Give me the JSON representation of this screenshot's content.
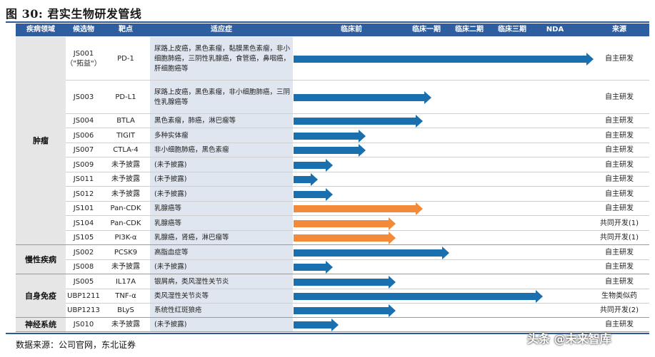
{
  "title": "图 30: 君实生物研发管线",
  "headers": [
    "疾病领域",
    "候选物",
    "靶点",
    "适应症",
    "临床前",
    "临床一期",
    "临床二期",
    "临床三期",
    "NDA",
    "来源"
  ],
  "footnote": "数据来源：公司官网，东北证券",
  "watermark": "头条 @未来智库",
  "colors": {
    "blue_bar": "#1a6faf",
    "orange_bar": "#f28a3a",
    "header": "#2e5ea0"
  },
  "groups": [
    {
      "name": "肿瘤",
      "rows": [
        0,
        10
      ]
    },
    {
      "name": "慢性疾病",
      "rows": [
        11,
        12
      ]
    },
    {
      "name": "自身免疫",
      "rows": [
        13,
        15
      ]
    },
    {
      "name": "神经系统",
      "rows": [
        16,
        16
      ]
    }
  ],
  "rows": [
    {
      "candidate": "JS001\n（\"拓益\"）",
      "target": "PD-1",
      "indication": "尿路上皮癌，黑色素瘤，黏膜黑色素瘤，非小细胞肺癌，三阴性乳腺癌，食管癌，鼻咽癌，肝细胞癌等",
      "source": "自主研发",
      "color": "blue",
      "progress": 1.0
    },
    {
      "candidate": "JS003",
      "target": "PD-L1",
      "indication": "尿路上皮癌，黑色素瘤，非小细胞肺癌，三阴性乳腺癌等",
      "source": "自主研发",
      "color": "blue",
      "progress": 0.46
    },
    {
      "candidate": "JS004",
      "target": "BTLA",
      "indication": "黑色素瘤，肺癌，淋巴瘤等",
      "source": "自主研发",
      "color": "blue",
      "progress": 0.43
    },
    {
      "candidate": "JS006",
      "target": "TIGIT",
      "indication": "多种实体瘤",
      "source": "自主研发",
      "color": "blue",
      "progress": 0.24
    },
    {
      "candidate": "JS007",
      "target": "CTLA-4",
      "indication": "非小细胞肺癌，黑色素瘤",
      "source": "自主研发",
      "color": "blue",
      "progress": 0.24
    },
    {
      "candidate": "JS009",
      "target": "未予披露",
      "indication": "(未予披露)",
      "source": "自主研发",
      "color": "blue",
      "progress": 0.13
    },
    {
      "candidate": "JS011",
      "target": "未予披露",
      "indication": "(未予披露)",
      "source": "自主研发",
      "color": "blue",
      "progress": 0.08
    },
    {
      "candidate": "JS012",
      "target": "未予披露",
      "indication": "(未予披露)",
      "source": "自主研发",
      "color": "blue",
      "progress": 0.13
    },
    {
      "candidate": "JS101",
      "target": "Pan-CDK",
      "indication": "乳腺癌等",
      "source": "自主研发",
      "color": "orange",
      "progress": 0.43
    },
    {
      "candidate": "JS104",
      "target": "Pan-CDK",
      "indication": "乳腺癌等",
      "source": "共同开发(1)",
      "color": "orange",
      "progress": 0.34
    },
    {
      "candidate": "JS105",
      "target": "PI3K-α",
      "indication": "乳腺癌，肾癌，淋巴瘤等",
      "source": "共同开发(1)",
      "color": "orange",
      "progress": 0.34
    },
    {
      "candidate": "JS002",
      "target": "PCSK9",
      "indication": "高脂血症等",
      "source": "自主研发",
      "color": "blue",
      "progress": 0.52
    },
    {
      "candidate": "JS008",
      "target": "未予披露",
      "indication": "(未予披露)",
      "source": "自主研发",
      "color": "blue",
      "progress": 0.13
    },
    {
      "candidate": "JS005",
      "target": "IL17A",
      "indication": "银屑病，类风湿性关节炎",
      "source": "自主研发",
      "color": "blue",
      "progress": 0.34
    },
    {
      "candidate": "UBP1211",
      "target": "TNF-α",
      "indication": "类风湿性关节炎等",
      "source": "生物类似药",
      "color": "blue",
      "progress": 0.83
    },
    {
      "candidate": "UBP1213",
      "target": "BLyS",
      "indication": "系统性红斑狼疮",
      "source": "共同开发(2)",
      "color": "blue",
      "progress": 0.34
    },
    {
      "candidate": "JS010",
      "target": "未予披露",
      "indication": "(未予披露)",
      "source": "自主研发",
      "color": "blue",
      "progress": 0.15
    }
  ]
}
